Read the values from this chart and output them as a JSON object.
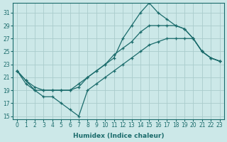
{
  "xlabel": "Humidex (Indice chaleur)",
  "ylabel": "",
  "background_color": "#cce8e8",
  "grid_color": "#aacccc",
  "line_color": "#1a6b6b",
  "xlim": [
    -0.5,
    23.5
  ],
  "ylim": [
    14.5,
    32.5
  ],
  "xticks": [
    0,
    1,
    2,
    3,
    4,
    5,
    6,
    7,
    8,
    9,
    10,
    11,
    12,
    13,
    14,
    15,
    16,
    17,
    18,
    19,
    20,
    21,
    22,
    23
  ],
  "yticks": [
    15,
    17,
    19,
    21,
    23,
    25,
    27,
    29,
    31
  ],
  "line1_x": [
    0,
    1,
    2,
    3,
    4,
    5,
    6,
    7,
    8,
    9,
    10,
    11,
    12,
    13,
    14,
    15,
    16,
    17,
    18,
    19,
    20,
    21,
    22,
    23
  ],
  "line1_y": [
    22,
    20,
    19,
    18,
    18,
    17,
    16,
    15,
    19,
    20,
    21,
    22,
    23,
    24,
    25,
    26,
    26.5,
    27,
    27,
    27,
    27,
    25,
    24,
    23.5
  ],
  "line2_x": [
    0,
    1,
    2,
    3,
    4,
    5,
    6,
    7,
    8,
    9,
    10,
    11,
    12,
    13,
    14,
    15,
    16,
    17,
    18,
    19,
    20,
    21,
    22,
    23
  ],
  "line2_y": [
    22,
    20.5,
    19,
    19,
    19,
    19,
    19,
    20,
    21,
    22,
    23,
    24,
    27,
    29,
    31,
    32.5,
    31,
    30,
    29,
    28.5,
    27,
    25,
    24,
    23.5
  ],
  "line3_x": [
    0,
    1,
    2,
    3,
    4,
    5,
    6,
    7,
    8,
    9,
    10,
    11,
    12,
    13,
    14,
    15,
    16,
    17,
    18,
    19,
    20,
    21,
    22,
    23
  ],
  "line3_y": [
    22,
    20.5,
    19.5,
    19,
    19,
    19,
    19,
    19.5,
    21,
    22,
    23,
    24.5,
    25.5,
    26.5,
    28,
    29,
    29,
    29,
    29,
    28.5,
    27,
    25,
    24,
    23.5
  ],
  "marker": "+"
}
